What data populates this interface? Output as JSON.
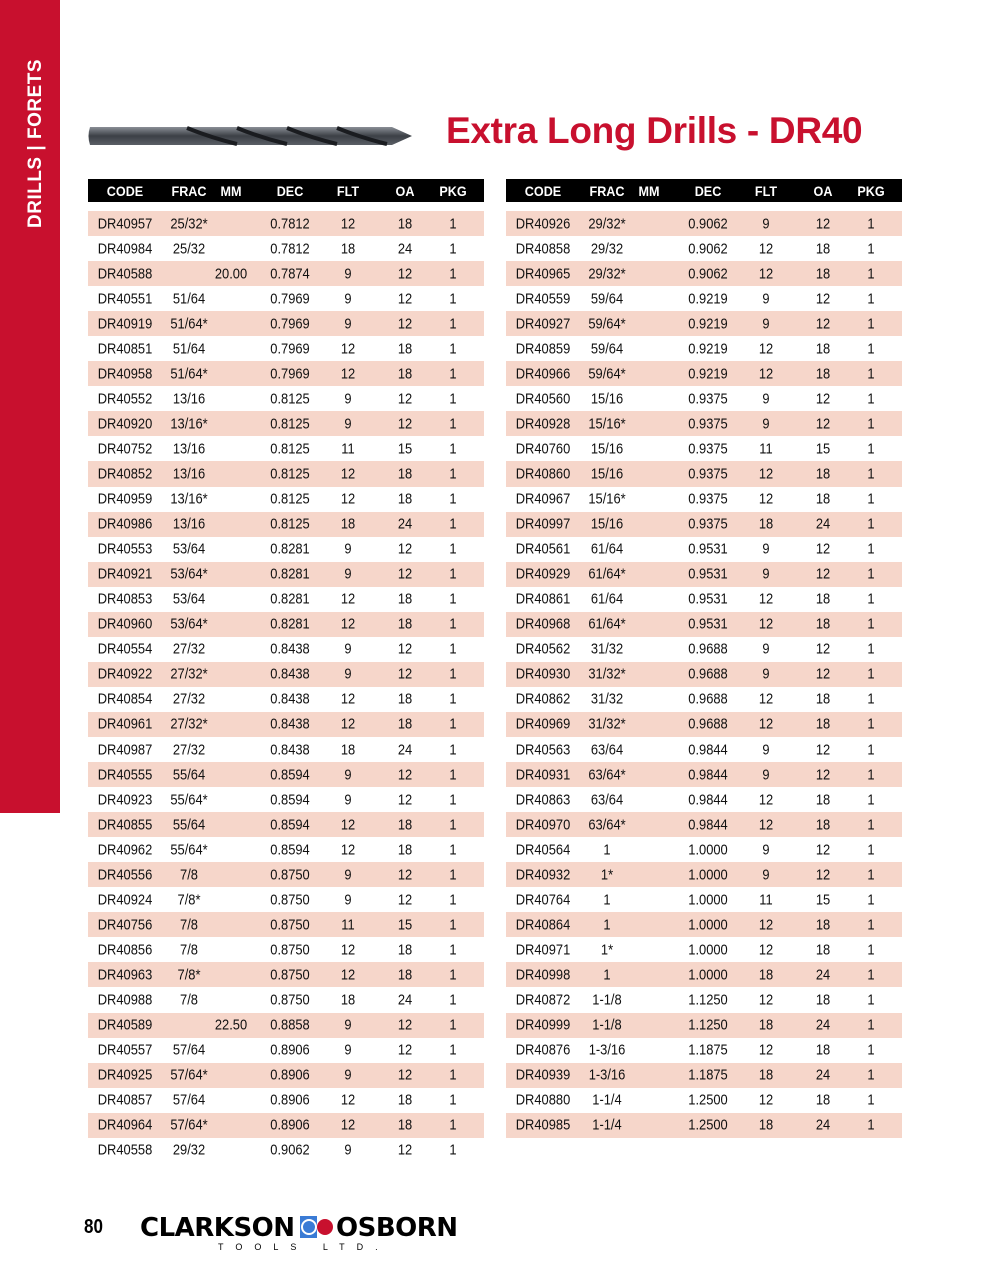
{
  "sidebar": {
    "label": "DRILLS  |  FORETS"
  },
  "title": "Extra Long Drills - DR40",
  "colors": {
    "brand_red": "#c8102e",
    "row_shade": "#f6d6ca",
    "header_bg": "#000000"
  },
  "columns": [
    "CODE",
    "FRAC",
    "MM",
    "DEC",
    "FLT",
    "OA",
    "PKG"
  ],
  "left_table": {
    "rows": [
      [
        "DR40957",
        "25/32*",
        "",
        "0.7812",
        "12",
        "18",
        "1"
      ],
      [
        "DR40984",
        "25/32",
        "",
        "0.7812",
        "18",
        "24",
        "1"
      ],
      [
        "DR40588",
        "",
        "20.00",
        "0.7874",
        "9",
        "12",
        "1"
      ],
      [
        "DR40551",
        "51/64",
        "",
        "0.7969",
        "9",
        "12",
        "1"
      ],
      [
        "DR40919",
        "51/64*",
        "",
        "0.7969",
        "9",
        "12",
        "1"
      ],
      [
        "DR40851",
        "51/64",
        "",
        "0.7969",
        "12",
        "18",
        "1"
      ],
      [
        "DR40958",
        "51/64*",
        "",
        "0.7969",
        "12",
        "18",
        "1"
      ],
      [
        "DR40552",
        "13/16",
        "",
        "0.8125",
        "9",
        "12",
        "1"
      ],
      [
        "DR40920",
        "13/16*",
        "",
        "0.8125",
        "9",
        "12",
        "1"
      ],
      [
        "DR40752",
        "13/16",
        "",
        "0.8125",
        "11",
        "15",
        "1"
      ],
      [
        "DR40852",
        "13/16",
        "",
        "0.8125",
        "12",
        "18",
        "1"
      ],
      [
        "DR40959",
        "13/16*",
        "",
        "0.8125",
        "12",
        "18",
        "1"
      ],
      [
        "DR40986",
        "13/16",
        "",
        "0.8125",
        "18",
        "24",
        "1"
      ],
      [
        "DR40553",
        "53/64",
        "",
        "0.8281",
        "9",
        "12",
        "1"
      ],
      [
        "DR40921",
        "53/64*",
        "",
        "0.8281",
        "9",
        "12",
        "1"
      ],
      [
        "DR40853",
        "53/64",
        "",
        "0.8281",
        "12",
        "18",
        "1"
      ],
      [
        "DR40960",
        "53/64*",
        "",
        "0.8281",
        "12",
        "18",
        "1"
      ],
      [
        "DR40554",
        "27/32",
        "",
        "0.8438",
        "9",
        "12",
        "1"
      ],
      [
        "DR40922",
        "27/32*",
        "",
        "0.8438",
        "9",
        "12",
        "1"
      ],
      [
        "DR40854",
        "27/32",
        "",
        "0.8438",
        "12",
        "18",
        "1"
      ],
      [
        "DR40961",
        "27/32*",
        "",
        "0.8438",
        "12",
        "18",
        "1"
      ],
      [
        "DR40987",
        "27/32",
        "",
        "0.8438",
        "18",
        "24",
        "1"
      ],
      [
        "DR40555",
        "55/64",
        "",
        "0.8594",
        "9",
        "12",
        "1"
      ],
      [
        "DR40923",
        "55/64*",
        "",
        "0.8594",
        "9",
        "12",
        "1"
      ],
      [
        "DR40855",
        "55/64",
        "",
        "0.8594",
        "12",
        "18",
        "1"
      ],
      [
        "DR40962",
        "55/64*",
        "",
        "0.8594",
        "12",
        "18",
        "1"
      ],
      [
        "DR40556",
        "7/8",
        "",
        "0.8750",
        "9",
        "12",
        "1"
      ],
      [
        "DR40924",
        "7/8*",
        "",
        "0.8750",
        "9",
        "12",
        "1"
      ],
      [
        "DR40756",
        "7/8",
        "",
        "0.8750",
        "11",
        "15",
        "1"
      ],
      [
        "DR40856",
        "7/8",
        "",
        "0.8750",
        "12",
        "18",
        "1"
      ],
      [
        "DR40963",
        "7/8*",
        "",
        "0.8750",
        "12",
        "18",
        "1"
      ],
      [
        "DR40988",
        "7/8",
        "",
        "0.8750",
        "18",
        "24",
        "1"
      ],
      [
        "DR40589",
        "",
        "22.50",
        "0.8858",
        "9",
        "12",
        "1"
      ],
      [
        "DR40557",
        "57/64",
        "",
        "0.8906",
        "9",
        "12",
        "1"
      ],
      [
        "DR40925",
        "57/64*",
        "",
        "0.8906",
        "9",
        "12",
        "1"
      ],
      [
        "DR40857",
        "57/64",
        "",
        "0.8906",
        "12",
        "18",
        "1"
      ],
      [
        "DR40964",
        "57/64*",
        "",
        "0.8906",
        "12",
        "18",
        "1"
      ],
      [
        "DR40558",
        "29/32",
        "",
        "0.9062",
        "9",
        "12",
        "1"
      ]
    ]
  },
  "right_table": {
    "rows": [
      [
        "DR40926",
        "29/32*",
        "",
        "0.9062",
        "9",
        "12",
        "1"
      ],
      [
        "DR40858",
        "29/32",
        "",
        "0.9062",
        "12",
        "18",
        "1"
      ],
      [
        "DR40965",
        "29/32*",
        "",
        "0.9062",
        "12",
        "18",
        "1"
      ],
      [
        "DR40559",
        "59/64",
        "",
        "0.9219",
        "9",
        "12",
        "1"
      ],
      [
        "DR40927",
        "59/64*",
        "",
        "0.9219",
        "9",
        "12",
        "1"
      ],
      [
        "DR40859",
        "59/64",
        "",
        "0.9219",
        "12",
        "18",
        "1"
      ],
      [
        "DR40966",
        "59/64*",
        "",
        "0.9219",
        "12",
        "18",
        "1"
      ],
      [
        "DR40560",
        "15/16",
        "",
        "0.9375",
        "9",
        "12",
        "1"
      ],
      [
        "DR40928",
        "15/16*",
        "",
        "0.9375",
        "9",
        "12",
        "1"
      ],
      [
        "DR40760",
        "15/16",
        "",
        "0.9375",
        "11",
        "15",
        "1"
      ],
      [
        "DR40860",
        "15/16",
        "",
        "0.9375",
        "12",
        "18",
        "1"
      ],
      [
        "DR40967",
        "15/16*",
        "",
        "0.9375",
        "12",
        "18",
        "1"
      ],
      [
        "DR40997",
        "15/16",
        "",
        "0.9375",
        "18",
        "24",
        "1"
      ],
      [
        "DR40561",
        "61/64",
        "",
        "0.9531",
        "9",
        "12",
        "1"
      ],
      [
        "DR40929",
        "61/64*",
        "",
        "0.9531",
        "9",
        "12",
        "1"
      ],
      [
        "DR40861",
        "61/64",
        "",
        "0.9531",
        "12",
        "18",
        "1"
      ],
      [
        "DR40968",
        "61/64*",
        "",
        "0.9531",
        "12",
        "18",
        "1"
      ],
      [
        "DR40562",
        "31/32",
        "",
        "0.9688",
        "9",
        "12",
        "1"
      ],
      [
        "DR40930",
        "31/32*",
        "",
        "0.9688",
        "9",
        "12",
        "1"
      ],
      [
        "DR40862",
        "31/32",
        "",
        "0.9688",
        "12",
        "18",
        "1"
      ],
      [
        "DR40969",
        "31/32*",
        "",
        "0.9688",
        "12",
        "18",
        "1"
      ],
      [
        "DR40563",
        "63/64",
        "",
        "0.9844",
        "9",
        "12",
        "1"
      ],
      [
        "DR40931",
        "63/64*",
        "",
        "0.9844",
        "9",
        "12",
        "1"
      ],
      [
        "DR40863",
        "63/64",
        "",
        "0.9844",
        "12",
        "18",
        "1"
      ],
      [
        "DR40970",
        "63/64*",
        "",
        "0.9844",
        "12",
        "18",
        "1"
      ],
      [
        "DR40564",
        "1",
        "",
        "1.0000",
        "9",
        "12",
        "1"
      ],
      [
        "DR40932",
        "1*",
        "",
        "1.0000",
        "9",
        "12",
        "1"
      ],
      [
        "DR40764",
        "1",
        "",
        "1.0000",
        "11",
        "15",
        "1"
      ],
      [
        "DR40864",
        "1",
        "",
        "1.0000",
        "12",
        "18",
        "1"
      ],
      [
        "DR40971",
        "1*",
        "",
        "1.0000",
        "12",
        "18",
        "1"
      ],
      [
        "DR40998",
        "1",
        "",
        "1.0000",
        "18",
        "24",
        "1"
      ],
      [
        "DR40872",
        "1-1/8",
        "",
        "1.1250",
        "12",
        "18",
        "1"
      ],
      [
        "DR40999",
        "1-1/8",
        "",
        "1.1250",
        "18",
        "24",
        "1"
      ],
      [
        "DR40876",
        "1-3/16",
        "",
        "1.1875",
        "12",
        "18",
        "1"
      ],
      [
        "DR40939",
        "1-3/16",
        "",
        "1.1875",
        "18",
        "24",
        "1"
      ],
      [
        "DR40880",
        "1-1/4",
        "",
        "1.2500",
        "12",
        "18",
        "1"
      ],
      [
        "DR40985",
        "1-1/4",
        "",
        "1.2500",
        "18",
        "24",
        "1"
      ]
    ]
  },
  "footer": {
    "page_number": "80",
    "logo_left": "CLARKSON",
    "logo_right": "OSBORN",
    "logo_sub": "TOOLS LTD."
  }
}
